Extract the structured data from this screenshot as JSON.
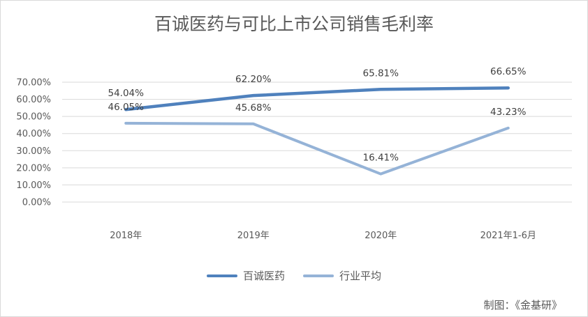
{
  "chart_data": {
    "type": "line",
    "title": "百诚医药与可比上市公司销售毛利率",
    "categories": [
      "2018年",
      "2019年",
      "2020年",
      "2021年1-6月"
    ],
    "yticks": [
      "0.00%",
      "10.00%",
      "20.00%",
      "30.00%",
      "40.00%",
      "50.00%",
      "60.00%",
      "70.00%"
    ],
    "ylim": [
      0,
      70
    ],
    "grid": true,
    "legend_position": "bottom",
    "series": [
      {
        "name": "百诚医药",
        "values": [
          54.04,
          62.2,
          65.81,
          66.65
        ],
        "labels": [
          "54.04%",
          "62.20%",
          "65.81%",
          "66.65%"
        ],
        "color": "#4f81bd"
      },
      {
        "name": "行业平均",
        "values": [
          46.05,
          45.68,
          16.41,
          43.23
        ],
        "labels": [
          "46.05%",
          "45.68%",
          "16.41%",
          "43.23%"
        ],
        "color": "#95b3d7"
      }
    ]
  },
  "credit": "制图：《金基研》"
}
